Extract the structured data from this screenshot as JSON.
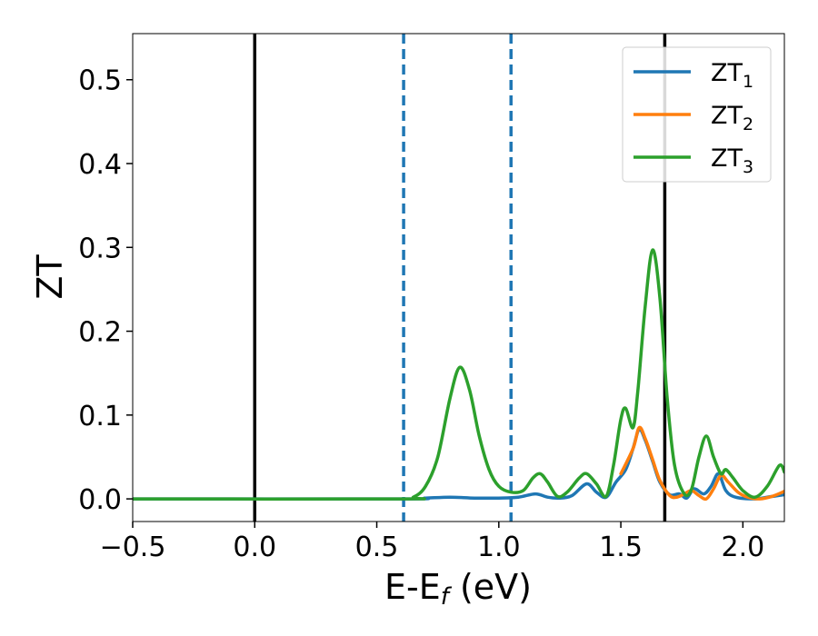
{
  "chart_data": {
    "type": "line",
    "title": "",
    "xlabel": "E-E",
    "xlabel_sub": "f",
    "xlabel_unit": " (eV)",
    "ylabel": "ZT",
    "xlim": [
      -0.5,
      2.17
    ],
    "ylim": [
      -0.027,
      0.555
    ],
    "x_ticks": [
      -0.5,
      0.0,
      0.5,
      1.0,
      1.5,
      2.0
    ],
    "x_tick_labels": [
      "−0.5",
      "0.0",
      "0.5",
      "1.0",
      "1.5",
      "2.0"
    ],
    "y_ticks": [
      0.0,
      0.1,
      0.2,
      0.3,
      0.4,
      0.5
    ],
    "y_tick_labels": [
      "0.0",
      "0.1",
      "0.2",
      "0.3",
      "0.4",
      "0.5"
    ],
    "grid": false,
    "legend_position": "top-right",
    "vertical_lines": [
      {
        "x": 0.0,
        "style": "solid",
        "color": "#000000"
      },
      {
        "x": 0.61,
        "style": "dashed",
        "color": "#1f77b4"
      },
      {
        "x": 1.05,
        "style": "dashed",
        "color": "#1f77b4"
      },
      {
        "x": 1.68,
        "style": "solid",
        "color": "#000000"
      }
    ],
    "series": [
      {
        "name": "ZT",
        "name_sub": "1",
        "color": "#1f77b4",
        "points": [
          [
            -0.5,
            0
          ],
          [
            0.6,
            0
          ],
          [
            0.7,
            0.001
          ],
          [
            0.8,
            0.002
          ],
          [
            0.9,
            0.001
          ],
          [
            1.0,
            0.001
          ],
          [
            1.08,
            0.002
          ],
          [
            1.15,
            0.006
          ],
          [
            1.2,
            0.002
          ],
          [
            1.25,
            0.001
          ],
          [
            1.3,
            0.004
          ],
          [
            1.36,
            0.018
          ],
          [
            1.4,
            0.008
          ],
          [
            1.44,
            0.002
          ],
          [
            1.48,
            0.02
          ],
          [
            1.52,
            0.035
          ],
          [
            1.55,
            0.06
          ],
          [
            1.575,
            0.083
          ],
          [
            1.6,
            0.07
          ],
          [
            1.63,
            0.045
          ],
          [
            1.66,
            0.02
          ],
          [
            1.7,
            0.005
          ],
          [
            1.74,
            0.006
          ],
          [
            1.77,
            0.001
          ],
          [
            1.8,
            0.012
          ],
          [
            1.84,
            0.006
          ],
          [
            1.87,
            0.015
          ],
          [
            1.9,
            0.03
          ],
          [
            1.93,
            0.01
          ],
          [
            1.97,
            0.002
          ],
          [
            2.05,
            0.0
          ],
          [
            2.1,
            0.002
          ],
          [
            2.17,
            0.005
          ]
        ]
      },
      {
        "name": "ZT",
        "name_sub": "2",
        "color": "#ff7f0e",
        "points": [
          [
            1.5,
            0.03
          ],
          [
            1.55,
            0.06
          ],
          [
            1.575,
            0.085
          ],
          [
            1.6,
            0.072
          ],
          [
            1.63,
            0.047
          ],
          [
            1.66,
            0.022
          ],
          [
            1.7,
            0.004
          ],
          [
            1.73,
            0.002
          ],
          [
            1.76,
            0.006
          ],
          [
            1.79,
            0.01
          ],
          [
            1.82,
            0.004
          ],
          [
            1.85,
            0.0
          ],
          [
            1.88,
            0.012
          ],
          [
            1.91,
            0.028
          ],
          [
            1.94,
            0.02
          ],
          [
            1.98,
            0.008
          ],
          [
            2.02,
            0.002
          ],
          [
            2.07,
            0.0
          ],
          [
            2.12,
            0.003
          ],
          [
            2.17,
            0.009
          ]
        ]
      },
      {
        "name": "ZT",
        "name_sub": "3",
        "color": "#2ca02c",
        "points": [
          [
            -0.5,
            0
          ],
          [
            0.6,
            0
          ],
          [
            0.65,
            0.002
          ],
          [
            0.7,
            0.015
          ],
          [
            0.75,
            0.05
          ],
          [
            0.8,
            0.12
          ],
          [
            0.84,
            0.157
          ],
          [
            0.88,
            0.13
          ],
          [
            0.92,
            0.075
          ],
          [
            0.96,
            0.035
          ],
          [
            1.0,
            0.015
          ],
          [
            1.05,
            0.008
          ],
          [
            1.1,
            0.01
          ],
          [
            1.14,
            0.025
          ],
          [
            1.17,
            0.03
          ],
          [
            1.2,
            0.02
          ],
          [
            1.24,
            0.003
          ],
          [
            1.28,
            0.008
          ],
          [
            1.33,
            0.025
          ],
          [
            1.36,
            0.03
          ],
          [
            1.4,
            0.018
          ],
          [
            1.44,
            0.003
          ],
          [
            1.47,
            0.04
          ],
          [
            1.5,
            0.095
          ],
          [
            1.52,
            0.108
          ],
          [
            1.55,
            0.085
          ],
          [
            1.57,
            0.13
          ],
          [
            1.6,
            0.23
          ],
          [
            1.63,
            0.297
          ],
          [
            1.66,
            0.24
          ],
          [
            1.69,
            0.12
          ],
          [
            1.72,
            0.04
          ],
          [
            1.76,
            0.006
          ],
          [
            1.79,
            0.012
          ],
          [
            1.82,
            0.05
          ],
          [
            1.85,
            0.075
          ],
          [
            1.88,
            0.05
          ],
          [
            1.91,
            0.03
          ],
          [
            1.93,
            0.035
          ],
          [
            1.96,
            0.025
          ],
          [
            2.0,
            0.01
          ],
          [
            2.05,
            0.002
          ],
          [
            2.1,
            0.015
          ],
          [
            2.15,
            0.04
          ],
          [
            2.17,
            0.032
          ]
        ]
      }
    ]
  }
}
